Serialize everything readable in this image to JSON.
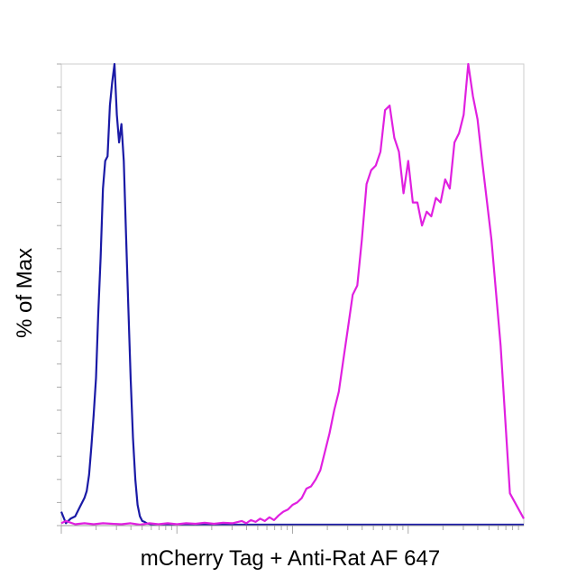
{
  "chart_data": {
    "type": "line",
    "title": "",
    "xlabel": "mCherry Tag + Anti-Rat AF 647",
    "ylabel": "% of Max",
    "xscale": "log",
    "x_range": [
      0,
      1
    ],
    "y_range": [
      0,
      100
    ],
    "grid": false,
    "legend": "none",
    "series": [
      {
        "color": "#1a1aa6",
        "x": [
          0.0,
          0.01,
          0.02,
          0.03,
          0.04,
          0.05,
          0.055,
          0.06,
          0.065,
          0.07,
          0.075,
          0.08,
          0.085,
          0.09,
          0.095,
          0.1,
          0.105,
          0.11,
          0.115,
          0.12,
          0.125,
          0.13,
          0.135,
          0.14,
          0.145,
          0.15,
          0.155,
          0.16,
          0.165,
          0.17,
          0.175,
          0.18,
          0.185,
          0.19,
          0.195,
          0.2,
          0.21,
          0.22,
          0.3,
          1.0
        ],
        "y": [
          3,
          0.5,
          1.5,
          2,
          4,
          6,
          7.5,
          11,
          17,
          24,
          32,
          46,
          58,
          73,
          79,
          80,
          91,
          96,
          100,
          89,
          83,
          87,
          79,
          63,
          47,
          32,
          19,
          10,
          4.5,
          2,
          1,
          0.8,
          0.5,
          0.4,
          0.3,
          0.3,
          0.2,
          0.2,
          0.2,
          0.2
        ]
      },
      {
        "color": "#e020e0",
        "x": [
          0.0,
          0.01,
          0.03,
          0.05,
          0.07,
          0.09,
          0.11,
          0.13,
          0.15,
          0.17,
          0.19,
          0.21,
          0.23,
          0.25,
          0.27,
          0.29,
          0.31,
          0.33,
          0.35,
          0.37,
          0.39,
          0.4,
          0.41,
          0.42,
          0.43,
          0.44,
          0.45,
          0.46,
          0.47,
          0.48,
          0.49,
          0.5,
          0.51,
          0.52,
          0.53,
          0.54,
          0.55,
          0.56,
          0.57,
          0.58,
          0.59,
          0.6,
          0.61,
          0.62,
          0.63,
          0.64,
          0.65,
          0.66,
          0.67,
          0.68,
          0.69,
          0.7,
          0.71,
          0.72,
          0.73,
          0.74,
          0.75,
          0.76,
          0.77,
          0.78,
          0.79,
          0.8,
          0.81,
          0.82,
          0.83,
          0.84,
          0.85,
          0.86,
          0.87,
          0.88,
          0.89,
          0.9,
          0.91,
          0.93,
          0.95,
          0.97,
          1.0
        ],
        "y": [
          0.5,
          1,
          0.3,
          0.5,
          0.3,
          0.5,
          0.4,
          0.3,
          0.5,
          0.2,
          0.5,
          0.3,
          0.5,
          0.3,
          0.5,
          0.4,
          0.6,
          0.4,
          0.6,
          0.5,
          1,
          0.5,
          1.2,
          0.8,
          1.5,
          1,
          1.8,
          1.2,
          2.2,
          3,
          3.5,
          4.5,
          5,
          6,
          8,
          8.5,
          10,
          12,
          16,
          20,
          25,
          29,
          36,
          43,
          50,
          52,
          62,
          74,
          77,
          78,
          81,
          90,
          91,
          84,
          81,
          72,
          79,
          70,
          70,
          65,
          68,
          67,
          71,
          70,
          75,
          73,
          83,
          85,
          89,
          100,
          93,
          88,
          79,
          62,
          39,
          7,
          1.5
        ]
      }
    ]
  }
}
